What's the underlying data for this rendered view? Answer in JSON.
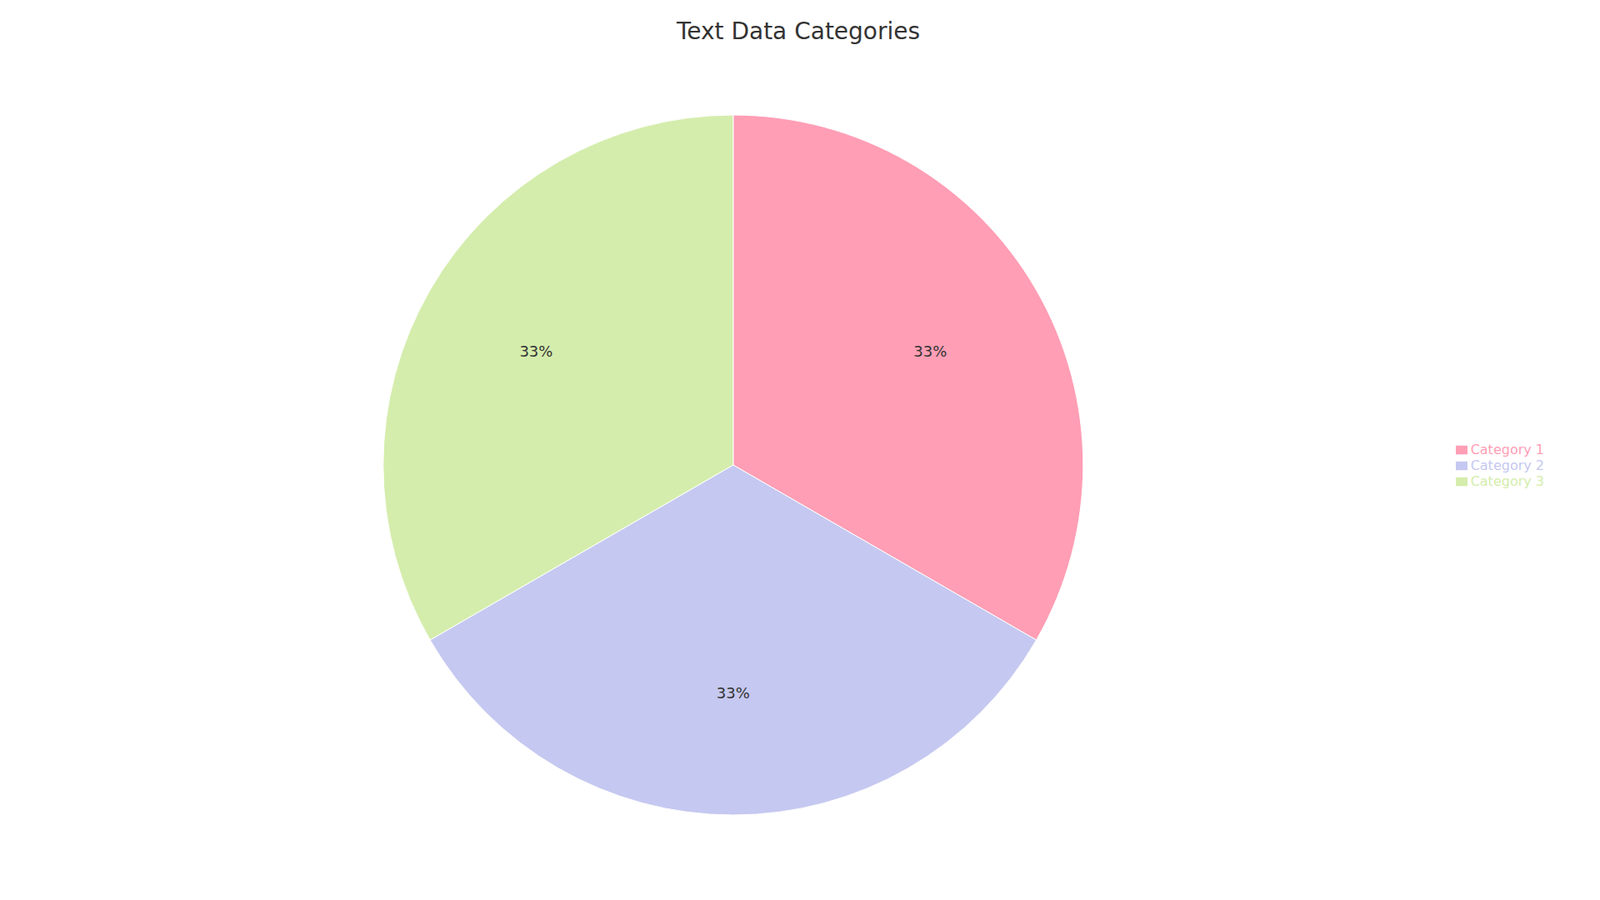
{
  "chart_data": {
    "type": "pie",
    "title": "Text Data Categories",
    "categories": [
      "Category 1",
      "Category 2",
      "Category 3"
    ],
    "values": [
      33,
      33,
      33
    ],
    "value_labels": [
      "33%",
      "33%",
      "33%"
    ],
    "colors": [
      "#FF9EB5",
      "#C5C8F0",
      "#D4EDAC"
    ],
    "data_labels": true,
    "legend": "right"
  }
}
